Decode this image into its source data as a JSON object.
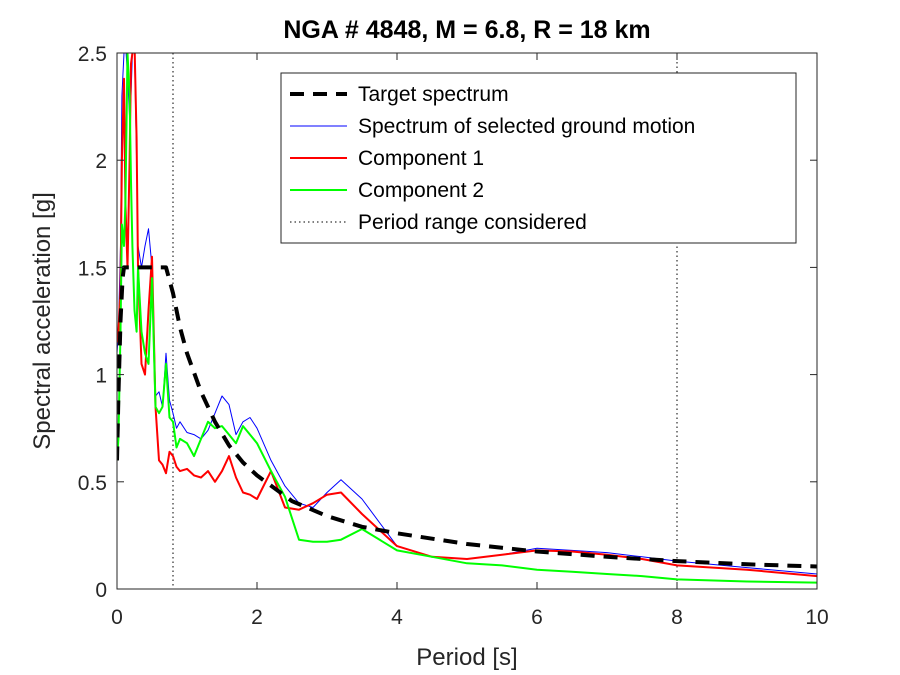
{
  "chart_data": {
    "type": "line",
    "title": "NGA # 4848, M = 6.8, R = 18 km",
    "xlabel": "Period [s]",
    "ylabel": "Spectral acceleration [g]",
    "xlim": [
      0,
      10
    ],
    "ylim": [
      0,
      2.5
    ],
    "xticks": [
      0,
      2,
      4,
      6,
      8,
      10
    ],
    "xtick_labels": [
      "0",
      "2",
      "4",
      "6",
      "8",
      "10"
    ],
    "yticks": [
      0,
      0.5,
      1,
      1.5,
      2,
      2.5
    ],
    "ytick_labels": [
      "0",
      "0.5",
      "1",
      "1.5",
      "2",
      "2.5"
    ],
    "grid": false,
    "legend_position": "top-right",
    "period_range": [
      0.8,
      8.0
    ],
    "series": [
      {
        "name": "Target spectrum",
        "color": "#000000",
        "style": "dashed",
        "x": [
          0,
          0.02,
          0.05,
          0.08,
          0.1,
          0.15,
          0.2,
          0.3,
          0.4,
          0.5,
          0.6,
          0.7,
          0.8,
          0.9,
          1.0,
          1.2,
          1.4,
          1.6,
          1.8,
          2.0,
          2.5,
          3.0,
          3.5,
          4.0,
          5.0,
          6.0,
          7.0,
          8.0,
          9.0,
          10.0
        ],
        "y": [
          0.6,
          0.9,
          1.25,
          1.45,
          1.5,
          1.5,
          1.5,
          1.5,
          1.5,
          1.5,
          1.5,
          1.5,
          1.38,
          1.22,
          1.1,
          0.92,
          0.78,
          0.67,
          0.59,
          0.53,
          0.41,
          0.34,
          0.29,
          0.26,
          0.21,
          0.175,
          0.15,
          0.13,
          0.115,
          0.105
        ]
      },
      {
        "name": "Spectrum of selected ground motion",
        "color": "#0000ff",
        "style": "solid",
        "x": [
          0,
          0.02,
          0.05,
          0.07,
          0.1,
          0.12,
          0.15,
          0.18,
          0.2,
          0.22,
          0.25,
          0.28,
          0.3,
          0.35,
          0.4,
          0.45,
          0.5,
          0.55,
          0.6,
          0.65,
          0.7,
          0.75,
          0.8,
          0.85,
          0.9,
          1.0,
          1.1,
          1.2,
          1.3,
          1.4,
          1.5,
          1.6,
          1.7,
          1.8,
          1.9,
          2.0,
          2.2,
          2.4,
          2.6,
          2.8,
          3.0,
          3.2,
          3.5,
          4.0,
          4.5,
          5.0,
          5.5,
          6.0,
          6.5,
          7.0,
          7.5,
          8.0,
          9.0,
          10.0
        ],
        "y": [
          1.1,
          1.2,
          1.6,
          2.3,
          2.5,
          2.55,
          2.4,
          2.2,
          2.3,
          2.5,
          2.5,
          2.0,
          1.6,
          1.5,
          1.6,
          1.68,
          1.5,
          0.9,
          0.92,
          0.85,
          1.1,
          0.88,
          0.82,
          0.75,
          0.78,
          0.73,
          0.72,
          0.7,
          0.74,
          0.82,
          0.9,
          0.86,
          0.72,
          0.78,
          0.8,
          0.75,
          0.6,
          0.48,
          0.4,
          0.38,
          0.45,
          0.51,
          0.42,
          0.2,
          0.15,
          0.14,
          0.16,
          0.19,
          0.18,
          0.17,
          0.15,
          0.13,
          0.1,
          0.07
        ]
      },
      {
        "name": "Component 1",
        "color": "#ff0000",
        "style": "solid",
        "x": [
          0,
          0.02,
          0.05,
          0.07,
          0.1,
          0.12,
          0.15,
          0.18,
          0.2,
          0.22,
          0.25,
          0.28,
          0.3,
          0.35,
          0.4,
          0.45,
          0.5,
          0.55,
          0.6,
          0.65,
          0.7,
          0.75,
          0.8,
          0.85,
          0.9,
          1.0,
          1.1,
          1.2,
          1.3,
          1.4,
          1.5,
          1.6,
          1.7,
          1.8,
          1.9,
          2.0,
          2.2,
          2.4,
          2.6,
          2.8,
          3.0,
          3.2,
          3.5,
          4.0,
          4.5,
          5.0,
          5.5,
          6.0,
          6.5,
          7.0,
          7.5,
          8.0,
          9.0,
          10.0
        ],
        "y": [
          1.15,
          1.2,
          1.4,
          2.0,
          2.38,
          1.8,
          1.5,
          2.0,
          2.45,
          2.5,
          2.55,
          2.1,
          1.5,
          1.05,
          1.0,
          1.3,
          1.55,
          0.85,
          0.6,
          0.58,
          0.54,
          0.64,
          0.62,
          0.57,
          0.55,
          0.56,
          0.53,
          0.52,
          0.55,
          0.5,
          0.55,
          0.62,
          0.52,
          0.45,
          0.44,
          0.42,
          0.55,
          0.38,
          0.37,
          0.4,
          0.44,
          0.45,
          0.35,
          0.2,
          0.15,
          0.14,
          0.16,
          0.18,
          0.175,
          0.16,
          0.14,
          0.11,
          0.09,
          0.06
        ]
      },
      {
        "name": "Component 2",
        "color": "#00ff00",
        "style": "solid",
        "x": [
          0,
          0.02,
          0.05,
          0.07,
          0.1,
          0.12,
          0.15,
          0.18,
          0.2,
          0.22,
          0.25,
          0.28,
          0.3,
          0.35,
          0.4,
          0.45,
          0.5,
          0.55,
          0.6,
          0.65,
          0.7,
          0.75,
          0.8,
          0.85,
          0.9,
          1.0,
          1.1,
          1.2,
          1.3,
          1.4,
          1.5,
          1.6,
          1.7,
          1.8,
          1.9,
          2.0,
          2.2,
          2.4,
          2.6,
          2.8,
          3.0,
          3.2,
          3.5,
          4.0,
          4.5,
          5.0,
          5.5,
          6.0,
          6.5,
          7.0,
          7.5,
          8.0,
          9.0,
          10.0
        ],
        "y": [
          0.6,
          0.7,
          1.2,
          1.7,
          1.6,
          1.8,
          2.5,
          2.3,
          1.9,
          1.6,
          1.3,
          1.2,
          1.5,
          1.2,
          1.1,
          1.05,
          1.45,
          0.85,
          0.82,
          0.85,
          1.05,
          0.8,
          0.78,
          0.66,
          0.7,
          0.68,
          0.62,
          0.7,
          0.78,
          0.75,
          0.76,
          0.72,
          0.68,
          0.76,
          0.72,
          0.68,
          0.55,
          0.43,
          0.23,
          0.22,
          0.22,
          0.23,
          0.28,
          0.18,
          0.15,
          0.12,
          0.11,
          0.09,
          0.08,
          0.07,
          0.06,
          0.045,
          0.035,
          0.03
        ]
      }
    ],
    "legend_extra": {
      "name": "Period range considered",
      "color": "#000000",
      "style": "dotted"
    }
  }
}
